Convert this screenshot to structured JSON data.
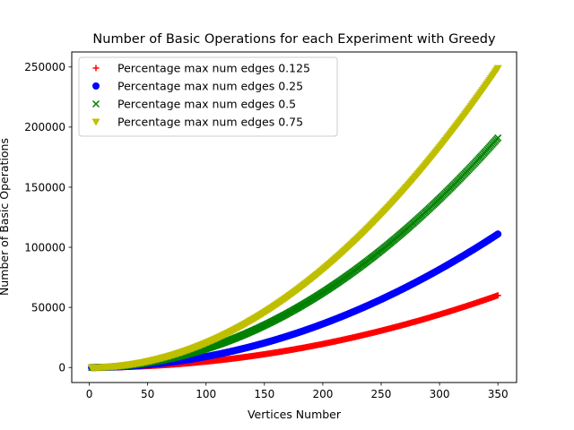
{
  "chart_data": {
    "type": "scatter",
    "title": "Number of Basic Operations for each Experiment with Greedy",
    "xlabel": "Vertices Number",
    "ylabel": "Number of Basic Operations",
    "xlim": [
      -15,
      366
    ],
    "ylim": [
      -12500,
      262500
    ],
    "xticks": [
      0,
      50,
      100,
      150,
      200,
      250,
      300,
      350
    ],
    "yticks": [
      0,
      50000,
      100000,
      150000,
      200000,
      250000
    ],
    "x_range": [
      2,
      350
    ],
    "grid": false,
    "legend_position": "top-left",
    "series": [
      {
        "name": "Percentage max num edges 0.125",
        "marker": "plus",
        "color": "#ff0000",
        "y_at_350": 60000
      },
      {
        "name": "Percentage max num edges 0.25",
        "marker": "circle",
        "color": "#0000ff",
        "y_at_350": 111000
      },
      {
        "name": "Percentage max num edges 0.5",
        "marker": "x",
        "color": "#008000",
        "y_at_350": 191000
      },
      {
        "name": "Percentage max num edges 0.75",
        "marker": "triangle-down",
        "color": "#bfbf00",
        "y_at_350": 249000
      }
    ]
  }
}
